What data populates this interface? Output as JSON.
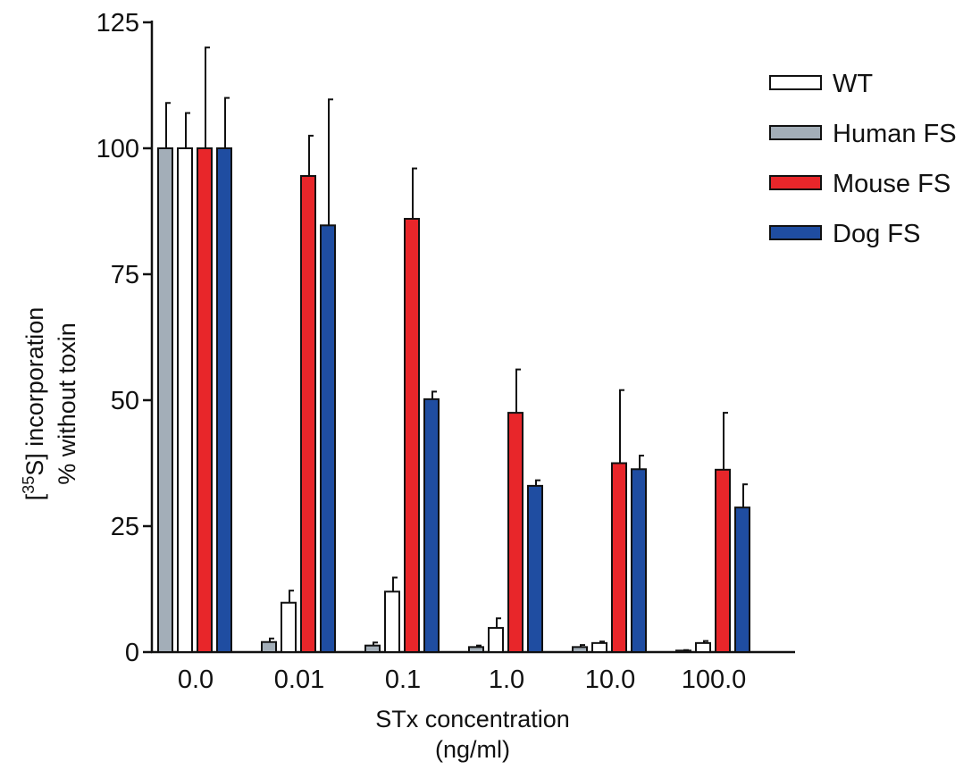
{
  "chart_data": {
    "type": "bar",
    "title": "",
    "xlabel": [
      "STx concentration",
      "(ng/ml)"
    ],
    "ylabel": {
      "prefix": "[",
      "superscript": "35",
      "suffix": "S] incorporation",
      "line2": "% without toxin"
    },
    "ylim": [
      0,
      125
    ],
    "yticks": [
      0,
      25,
      50,
      75,
      100,
      125
    ],
    "categories": [
      "0.0",
      "0.01",
      "0.1",
      "1.0",
      "10.0",
      "100.0"
    ],
    "legend_position": "top-right",
    "grid": false,
    "series": [
      {
        "name": "Human FS",
        "color": "#a3aeb8",
        "values": [
          100,
          2,
          1.3,
          1,
          1,
          0.3
        ],
        "errors": [
          9,
          0.7,
          0.6,
          0.3,
          0.4,
          0.1
        ]
      },
      {
        "name": "WT",
        "color": "#ffffff",
        "values": [
          100,
          9.8,
          12,
          4.8,
          1.8,
          1.8
        ],
        "errors": [
          7,
          2.4,
          2.8,
          1.9,
          0.3,
          0.4
        ]
      },
      {
        "name": "Mouse FS",
        "color": "#e8262a",
        "values": [
          100,
          94.5,
          86,
          47.5,
          37.5,
          36.2
        ],
        "errors": [
          20,
          8,
          10,
          8.6,
          14.5,
          11.3
        ]
      },
      {
        "name": "Dog FS",
        "color": "#1f4da1",
        "values": [
          100,
          84.7,
          50.2,
          33,
          36.3,
          28.7
        ],
        "errors": [
          10,
          25,
          1.5,
          1.1,
          2.7,
          4.6
        ]
      }
    ],
    "legend_order": [
      "WT",
      "Human FS",
      "Mouse FS",
      "Dog FS"
    ]
  }
}
